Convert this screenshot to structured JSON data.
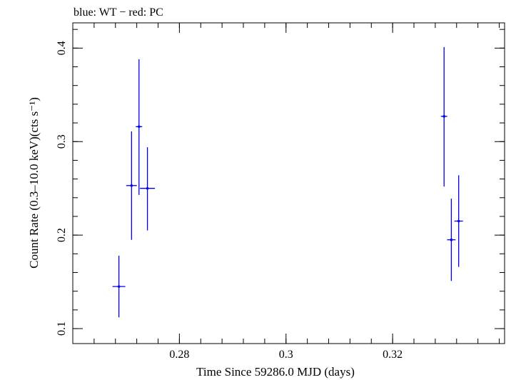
{
  "chart_data": {
    "type": "scatter",
    "title": "blue: WT − red: PC",
    "xlabel": "Time Since 59286.0 MJD (days)",
    "ylabel": "Count Rate (0.3–10.0 keV)(cts s⁻¹)",
    "xlim": [
      0.26,
      0.341
    ],
    "ylim": [
      0.084,
      0.427
    ],
    "x_ticks": [
      {
        "value": 0.28,
        "label": "0.28"
      },
      {
        "value": 0.3,
        "label": "0.3"
      },
      {
        "value": 0.32,
        "label": "0.32"
      }
    ],
    "y_ticks": [
      {
        "value": 0.1,
        "label": "0.1"
      },
      {
        "value": 0.2,
        "label": "0.2"
      },
      {
        "value": 0.3,
        "label": "0.3"
      },
      {
        "value": 0.4,
        "label": "0.4"
      }
    ],
    "x_minor_step": 0.004,
    "y_minor_step": 0.02,
    "grid": false,
    "series": [
      {
        "color": "#0000ee",
        "points": [
          {
            "x": 0.26865,
            "y": 0.145,
            "xerr": 0.0012,
            "ylo": 0.112,
            "yhi": 0.178
          },
          {
            "x": 0.27102,
            "y": 0.253,
            "xerr": 0.001,
            "ylo": 0.195,
            "yhi": 0.311
          },
          {
            "x": 0.27242,
            "y": 0.316,
            "xerr": 0.0006,
            "ylo": 0.243,
            "yhi": 0.388
          },
          {
            "x": 0.274,
            "y": 0.25,
            "xerr": 0.0014,
            "ylo": 0.205,
            "yhi": 0.294
          },
          {
            "x": 0.32965,
            "y": 0.327,
            "xerr": 0.0006,
            "ylo": 0.252,
            "yhi": 0.401
          },
          {
            "x": 0.33101,
            "y": 0.195,
            "xerr": 0.0008,
            "ylo": 0.151,
            "yhi": 0.239
          },
          {
            "x": 0.33239,
            "y": 0.215,
            "xerr": 0.0008,
            "ylo": 0.166,
            "yhi": 0.264
          }
        ]
      }
    ]
  }
}
